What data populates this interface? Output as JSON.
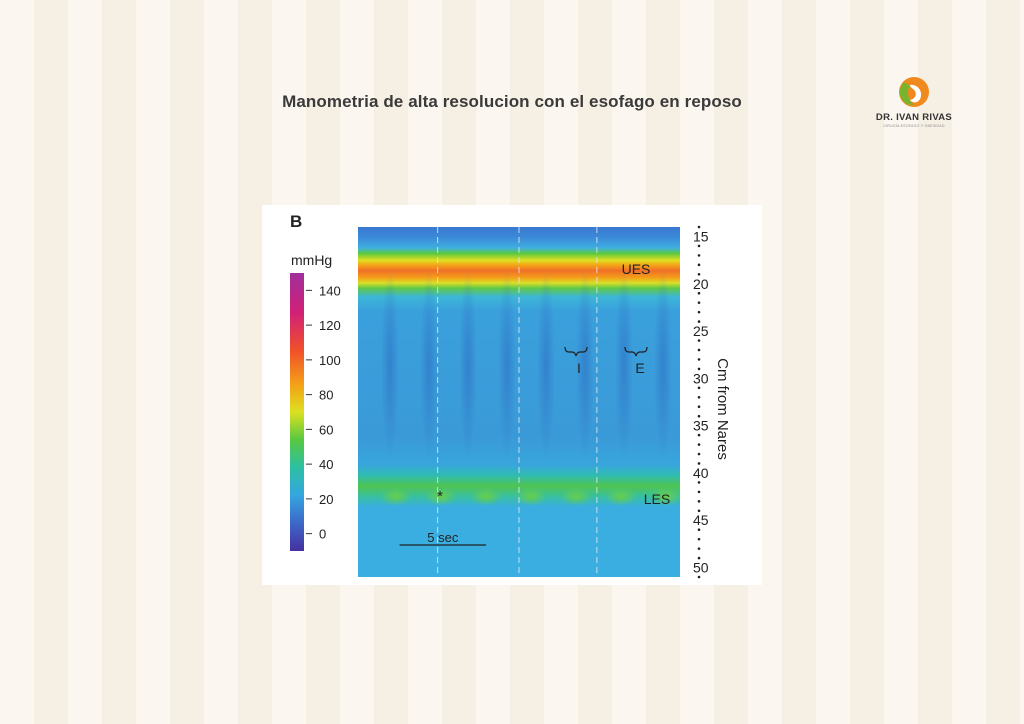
{
  "slide": {
    "title": "Manometria de alta resolucion con el esofago en reposo",
    "logo": {
      "name": "DR. IVAN RIVAS",
      "subtitle": "CIRUGÍA ESOFAGO Y OBESIDAD",
      "colors": {
        "orange": "#f08a1e",
        "green": "#78b52f"
      }
    }
  },
  "chart_data": {
    "type": "heatmap",
    "panel_label": "B",
    "colorbar": {
      "unit": "mmHg",
      "ticks": [
        140,
        120,
        100,
        80,
        60,
        40,
        20,
        0
      ],
      "range": [
        -10,
        150
      ],
      "colors": [
        "#4630a0",
        "#3c68c8",
        "#34a6e0",
        "#2cc0a4",
        "#58c840",
        "#dce020",
        "#f4a018",
        "#f0502a",
        "#d02078",
        "#a0309c"
      ]
    },
    "y_axis": {
      "label": "Cm from Nares",
      "ticks": [
        15,
        20,
        25,
        30,
        35,
        40,
        45,
        50
      ],
      "range": [
        14,
        51
      ]
    },
    "annotations": [
      "UES",
      "I",
      "E",
      "LES",
      "*"
    ],
    "scale_bar": {
      "label": "5 sec",
      "seconds": 5
    },
    "time_range_seconds": [
      0,
      18.6
    ],
    "vertical_markers_seconds": [
      4.6,
      9.3,
      13.8
    ],
    "regions": {
      "UES": {
        "center_cm": 18.5,
        "peak_mmHg": 100
      },
      "esophageal_body": {
        "mmHg": 5
      },
      "LES": {
        "center_cm": 42.5,
        "peak_mmHg": 42
      }
    }
  }
}
